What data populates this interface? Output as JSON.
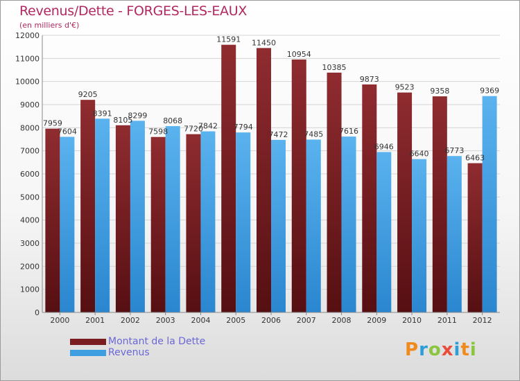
{
  "title": "Revenus/Dette - FORGES-LES-EAUX",
  "subtitle": "(en milliers d'€)",
  "logo": "Proxiti",
  "colors": {
    "dette": "#7a1e22",
    "revenus": "#3d9fe0",
    "title": "#b0285f",
    "legend_text": "#6a67d6"
  },
  "legend": [
    {
      "label": "Montant de la Dette",
      "color": "#7a1e22"
    },
    {
      "label": "Revenus",
      "color": "#3d9fe0"
    }
  ],
  "chart_data": {
    "type": "bar",
    "title": "Revenus/Dette - FORGES-LES-EAUX",
    "subtitle": "(en milliers d'€)",
    "categories": [
      "2000",
      "2001",
      "2002",
      "2003",
      "2004",
      "2005",
      "2006",
      "2007",
      "2008",
      "2009",
      "2010",
      "2011",
      "2012"
    ],
    "series": [
      {
        "name": "Montant de la Dette",
        "values": [
          7959,
          9205,
          8105,
          7598,
          7720,
          11591,
          11450,
          10954,
          10385,
          9873,
          9523,
          9358,
          6463
        ]
      },
      {
        "name": "Revenus",
        "values": [
          7604,
          8391,
          8299,
          8068,
          7842,
          7794,
          7472,
          7485,
          7616,
          6946,
          6640,
          6773,
          9369
        ]
      }
    ],
    "y_ticks": [
      0,
      1000,
      2000,
      3000,
      4000,
      5000,
      6000,
      7000,
      8000,
      9000,
      10000,
      11000,
      12000
    ],
    "ylim": [
      0,
      12000
    ],
    "grid": true,
    "legend_position": "bottom-left"
  }
}
